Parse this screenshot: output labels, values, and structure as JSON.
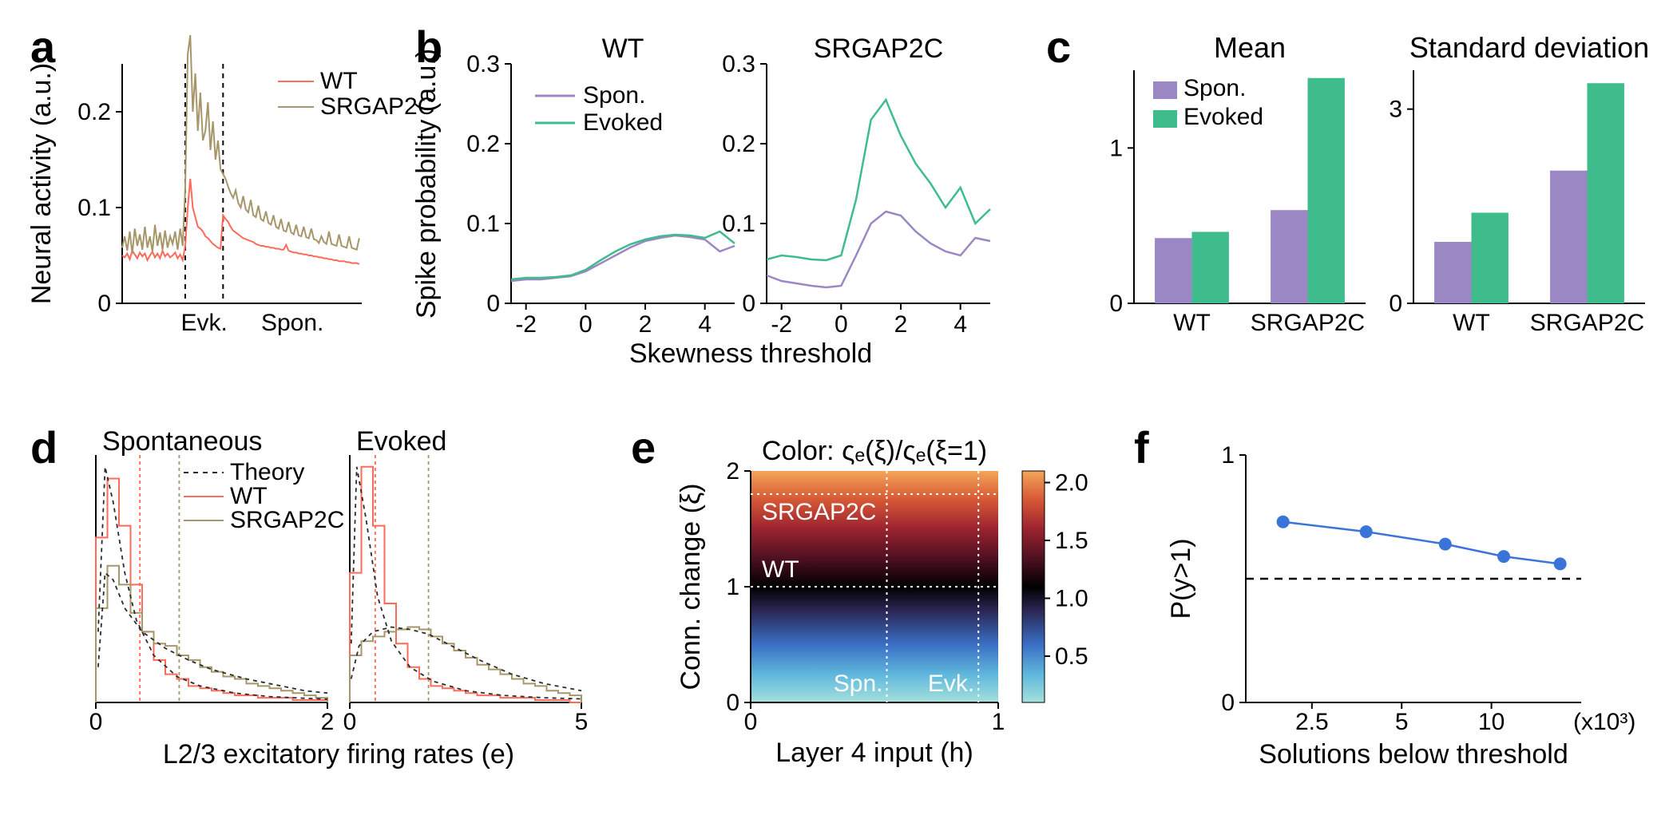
{
  "global": {
    "background_color": "#ffffff",
    "axis_color": "#000000",
    "font_family": "Arial",
    "panel_label_fontsize": 56,
    "axis_label_fontsize": 34,
    "tick_label_fontsize": 30,
    "legend_fontsize": 30,
    "title_fontsize": 36
  },
  "panels": {
    "a": {
      "type": "line",
      "letter": "a",
      "ylabel": "Neural activity (a.u.)",
      "ylim": [
        0,
        0.25
      ],
      "yticks": [
        0,
        0.1,
        0.2
      ],
      "xlim": [
        0,
        95
      ],
      "evoked_interval_x": [
        25,
        40
      ],
      "region_labels": {
        "evoked": "Evk.",
        "spontaneous": "Spon."
      },
      "evoked_divider_style": "dashed",
      "evoked_divider_color": "#000000",
      "legend": [
        {
          "label": "WT",
          "color": "#ff6a5a"
        },
        {
          "label": "SRGAP2C",
          "color": "#a6966a"
        }
      ],
      "series": {
        "WT": {
          "color": "#ff6a5a",
          "line_width": 2,
          "y": [
            0.05,
            0.048,
            0.052,
            0.046,
            0.055,
            0.051,
            0.047,
            0.053,
            0.049,
            0.052,
            0.045,
            0.05,
            0.054,
            0.048,
            0.052,
            0.047,
            0.055,
            0.049,
            0.052,
            0.048,
            0.05,
            0.053,
            0.047,
            0.051,
            0.045,
            0.06,
            0.1,
            0.13,
            0.1,
            0.09,
            0.08,
            0.078,
            0.075,
            0.07,
            0.068,
            0.065,
            0.062,
            0.06,
            0.058,
            0.057,
            0.092,
            0.088,
            0.085,
            0.08,
            0.076,
            0.074,
            0.072,
            0.07,
            0.068,
            0.067,
            0.066,
            0.065,
            0.064,
            0.062,
            0.061,
            0.06,
            0.06,
            0.059,
            0.059,
            0.058,
            0.058,
            0.057,
            0.057,
            0.056,
            0.056,
            0.061,
            0.055,
            0.054,
            0.053,
            0.053,
            0.052,
            0.052,
            0.051,
            0.051,
            0.05,
            0.05,
            0.049,
            0.049,
            0.048,
            0.048,
            0.047,
            0.047,
            0.046,
            0.046,
            0.045,
            0.045,
            0.044,
            0.044,
            0.044,
            0.043,
            0.043,
            0.042,
            0.042,
            0.042,
            0.041
          ]
        },
        "SRGAP2C": {
          "color": "#a6966a",
          "line_width": 2,
          "y": [
            0.058,
            0.07,
            0.055,
            0.075,
            0.052,
            0.078,
            0.06,
            0.072,
            0.056,
            0.08,
            0.058,
            0.07,
            0.054,
            0.082,
            0.06,
            0.074,
            0.056,
            0.076,
            0.058,
            0.07,
            0.062,
            0.075,
            0.056,
            0.078,
            0.06,
            0.12,
            0.26,
            0.28,
            0.2,
            0.24,
            0.18,
            0.22,
            0.17,
            0.18,
            0.21,
            0.16,
            0.19,
            0.15,
            0.17,
            0.14,
            0.135,
            0.13,
            0.122,
            0.115,
            0.11,
            0.118,
            0.105,
            0.1,
            0.112,
            0.098,
            0.095,
            0.108,
            0.092,
            0.09,
            0.102,
            0.088,
            0.086,
            0.096,
            0.084,
            0.082,
            0.092,
            0.08,
            0.078,
            0.088,
            0.076,
            0.075,
            0.085,
            0.074,
            0.072,
            0.082,
            0.071,
            0.07,
            0.08,
            0.069,
            0.068,
            0.078,
            0.067,
            0.066,
            0.063,
            0.07,
            0.064,
            0.062,
            0.075,
            0.062,
            0.061,
            0.06,
            0.072,
            0.06,
            0.059,
            0.058,
            0.07,
            0.058,
            0.057,
            0.056,
            0.068
          ]
        }
      }
    },
    "b": {
      "type": "line",
      "letter": "b",
      "ylabel": "Spike probability (a.u.)",
      "xlabel": "Skewness threshold",
      "ylim": [
        0,
        0.3
      ],
      "yticks": [
        0,
        0.1,
        0.2,
        0.3
      ],
      "xlim": [
        -2.5,
        5
      ],
      "xticks": [
        -2,
        0,
        2,
        4
      ],
      "legend": [
        {
          "label": "Spon.",
          "color": "#9b87c4"
        },
        {
          "label": "Evoked",
          "color": "#3fbc8b"
        }
      ],
      "subplots": {
        "WT": {
          "title": "WT",
          "series": {
            "Spon": {
              "color": "#9b87c4",
              "line_width": 2.5,
              "x": [
                -2.5,
                -2,
                -1.5,
                -1,
                -0.5,
                0,
                0.5,
                1,
                1.5,
                2,
                2.5,
                3,
                3.5,
                4,
                4.5,
                5
              ],
              "y": [
                0.028,
                0.03,
                0.03,
                0.032,
                0.034,
                0.04,
                0.05,
                0.06,
                0.07,
                0.078,
                0.082,
                0.085,
                0.083,
                0.08,
                0.065,
                0.072
              ]
            },
            "Evoked": {
              "color": "#3fbc8b",
              "line_width": 2.5,
              "x": [
                -2.5,
                -2,
                -1.5,
                -1,
                -0.5,
                0,
                0.5,
                1,
                1.5,
                2,
                2.5,
                3,
                3.5,
                4,
                4.5,
                5
              ],
              "y": [
                0.03,
                0.032,
                0.032,
                0.033,
                0.035,
                0.042,
                0.054,
                0.065,
                0.074,
                0.08,
                0.084,
                0.086,
                0.085,
                0.082,
                0.09,
                0.075
              ]
            }
          }
        },
        "SRGAP2C": {
          "title": "SRGAP2C",
          "series": {
            "Spon": {
              "color": "#9b87c4",
              "line_width": 2.5,
              "x": [
                -2.5,
                -2,
                -1.5,
                -1,
                -0.5,
                0,
                0.5,
                1,
                1.5,
                2,
                2.5,
                3,
                3.5,
                4,
                4.5,
                5
              ],
              "y": [
                0.035,
                0.028,
                0.025,
                0.022,
                0.02,
                0.022,
                0.06,
                0.1,
                0.115,
                0.11,
                0.09,
                0.075,
                0.065,
                0.06,
                0.082,
                0.078
              ]
            },
            "Evoked": {
              "color": "#3fbc8b",
              "line_width": 2.5,
              "x": [
                -2.5,
                -2,
                -1.5,
                -1,
                -0.5,
                0,
                0.5,
                1,
                1.5,
                2,
                2.5,
                3,
                3.5,
                4,
                4.5,
                5
              ],
              "y": [
                0.055,
                0.06,
                0.058,
                0.055,
                0.054,
                0.06,
                0.13,
                0.23,
                0.255,
                0.21,
                0.175,
                0.15,
                0.12,
                0.145,
                0.1,
                0.118
              ]
            }
          }
        }
      }
    },
    "c": {
      "type": "bar",
      "letter": "c",
      "bar_width": 0.32,
      "legend": [
        {
          "label": "Spon.",
          "color": "#9b87c4"
        },
        {
          "label": "Evoked",
          "color": "#3fbc8b"
        }
      ],
      "subplots": {
        "mean": {
          "title": "Mean",
          "ylim": [
            0,
            1.5
          ],
          "yticks": [
            0,
            1
          ],
          "categories": [
            "WT",
            "SRGAP2C"
          ],
          "values": {
            "Spon": [
              0.42,
              0.6
            ],
            "Evoked": [
              0.46,
              1.45
            ]
          }
        },
        "std": {
          "title": "Standard deviation",
          "ylim": [
            0,
            3.6
          ],
          "yticks": [
            0,
            3
          ],
          "categories": [
            "WT",
            "SRGAP2C"
          ],
          "values": {
            "Spon": [
              0.95,
              2.05
            ],
            "Evoked": [
              1.4,
              3.4
            ]
          }
        }
      }
    },
    "d": {
      "type": "histogram",
      "letter": "d",
      "xlabel": "L2/3 excitatory firing rates (e)",
      "theory_label": "Theory",
      "line_width": 2,
      "theory_dash": "5,5",
      "theory_color": "#2b2b2b",
      "mean_line_dash": "4,4",
      "legend": [
        {
          "label": "Theory",
          "color": "#2b2b2b",
          "style": "dashed"
        },
        {
          "label": "WT",
          "color": "#ff6a5a"
        },
        {
          "label": "SRGAP2C",
          "color": "#a6966a"
        }
      ],
      "subplots": {
        "spontaneous": {
          "title": "Spontaneous",
          "xlim": [
            0,
            2
          ],
          "xticks": [
            0,
            2
          ],
          "ylim": [
            0,
            1.05
          ],
          "means": {
            "WT": 0.38,
            "SRGAP2C": 0.72
          },
          "bin_edges": [
            0,
            0.1,
            0.2,
            0.3,
            0.4,
            0.5,
            0.6,
            0.7,
            0.8,
            0.9,
            1.0,
            1.1,
            1.2,
            1.3,
            1.4,
            1.5,
            1.6,
            1.7,
            1.8,
            1.9,
            2.0
          ],
          "hist": {
            "WT": [
              0.7,
              0.95,
              0.75,
              0.5,
              0.3,
              0.18,
              0.12,
              0.1,
              0.07,
              0.06,
              0.05,
              0.04,
              0.03,
              0.03,
              0.02,
              0.02,
              0.02,
              0.01,
              0.01,
              0.01
            ],
            "SRGAP2C": [
              0.4,
              0.58,
              0.5,
              0.38,
              0.3,
              0.25,
              0.24,
              0.2,
              0.18,
              0.15,
              0.13,
              0.11,
              0.1,
              0.08,
              0.07,
              0.06,
              0.05,
              0.04,
              0.03,
              0.02
            ]
          },
          "theory": {
            "WT_x": [
              0.02,
              0.08,
              0.15,
              0.25,
              0.35,
              0.5,
              0.7,
              0.9,
              1.2,
              1.5,
              1.8,
              2.0
            ],
            "WT_y": [
              0.3,
              1.0,
              0.85,
              0.55,
              0.35,
              0.2,
              0.11,
              0.07,
              0.04,
              0.025,
              0.018,
              0.014
            ],
            "SRGAP2C_x": [
              0.02,
              0.08,
              0.15,
              0.25,
              0.4,
              0.6,
              0.8,
              1.0,
              1.3,
              1.6,
              1.8,
              2.0
            ],
            "SRGAP2C_y": [
              0.15,
              0.55,
              0.52,
              0.4,
              0.3,
              0.23,
              0.18,
              0.14,
              0.1,
              0.07,
              0.05,
              0.04
            ]
          }
        },
        "evoked": {
          "title": "Evoked",
          "xlim": [
            0,
            5
          ],
          "xticks": [
            0,
            5
          ],
          "ylim": [
            0,
            1.05
          ],
          "means": {
            "WT": 0.55,
            "SRGAP2C": 1.7
          },
          "bin_edges": [
            0,
            0.25,
            0.5,
            0.75,
            1.0,
            1.25,
            1.5,
            1.75,
            2.0,
            2.25,
            2.5,
            2.75,
            3.0,
            3.25,
            3.5,
            3.75,
            4.0,
            4.25,
            4.5,
            4.75,
            5.0
          ],
          "hist": {
            "WT": [
              0.55,
              1.0,
              0.75,
              0.42,
              0.25,
              0.15,
              0.1,
              0.07,
              0.06,
              0.05,
              0.04,
              0.03,
              0.03,
              0.02,
              0.02,
              0.02,
              0.01,
              0.01,
              0.01,
              0.0
            ],
            "SRGAP2C": [
              0.2,
              0.26,
              0.28,
              0.3,
              0.31,
              0.32,
              0.31,
              0.28,
              0.25,
              0.22,
              0.19,
              0.16,
              0.14,
              0.12,
              0.1,
              0.08,
              0.07,
              0.05,
              0.04,
              0.03
            ]
          },
          "theory": {
            "WT_x": [
              0.03,
              0.15,
              0.35,
              0.6,
              0.9,
              1.3,
              1.8,
              2.5,
              3.3,
              4.2,
              5.0
            ],
            "WT_y": [
              0.25,
              1.0,
              0.78,
              0.45,
              0.26,
              0.15,
              0.09,
              0.05,
              0.03,
              0.02,
              0.015
            ],
            "SRGAP2C_x": [
              0.03,
              0.2,
              0.5,
              0.9,
              1.3,
              1.7,
              2.2,
              2.8,
              3.5,
              4.2,
              5.0
            ],
            "SRGAP2C_y": [
              0.1,
              0.24,
              0.3,
              0.32,
              0.31,
              0.29,
              0.24,
              0.18,
              0.12,
              0.08,
              0.05
            ]
          }
        }
      }
    },
    "e": {
      "type": "heatmap",
      "letter": "e",
      "title": "Color: ςₑ(ξ)/ςₑ(ξ=1)",
      "xlabel": "Layer 4 input (h)",
      "ylabel": "Conn. change (ξ)",
      "xlim": [
        0,
        1
      ],
      "xticks": [
        0,
        1
      ],
      "ylim": [
        0,
        2
      ],
      "yticks": [
        0,
        1,
        2
      ],
      "guide_lines": {
        "style": "dotted",
        "color": "#ffffff",
        "horizontal": [
          {
            "y": 1.0,
            "label": "WT"
          },
          {
            "y": 1.8,
            "label": "SRGAP2C"
          }
        ],
        "vertical": [
          {
            "x": 0.55,
            "label": "Spn."
          },
          {
            "x": 0.92,
            "label": "Evk."
          }
        ]
      },
      "colorbar": {
        "ticks": [
          0.5,
          1.0,
          1.5,
          2.0
        ],
        "stops": [
          {
            "t": 0.0,
            "c": "#a6e0dc"
          },
          {
            "t": 0.12,
            "c": "#5fb8dc"
          },
          {
            "t": 0.25,
            "c": "#3a6fc5"
          },
          {
            "t": 0.4,
            "c": "#2a2552"
          },
          {
            "t": 0.5,
            "c": "#000000"
          },
          {
            "t": 0.62,
            "c": "#4d1020"
          },
          {
            "t": 0.75,
            "c": "#9b2330"
          },
          {
            "t": 0.88,
            "c": "#d85a35"
          },
          {
            "t": 1.0,
            "c": "#f4a55a"
          }
        ],
        "value_range": [
          0.1,
          2.1
        ]
      }
    },
    "f": {
      "type": "line",
      "letter": "f",
      "ylabel": "P(y>1)",
      "xlabel": "Solutions below threshold",
      "ylim": [
        0,
        1
      ],
      "yticks": [
        0,
        1
      ],
      "xlim_log": [
        1500,
        20000
      ],
      "xticks": [
        2500,
        5000,
        10000
      ],
      "xticklabels": [
        "2.5",
        "5",
        "10"
      ],
      "x_unit_label": "(x10³)",
      "series": {
        "color": "#3a74d8",
        "marker": "circle",
        "marker_size": 8,
        "line_width": 2.5,
        "x": [
          2000,
          3800,
          7000,
          11000,
          17000
        ],
        "y": [
          0.73,
          0.69,
          0.64,
          0.59,
          0.56
        ]
      },
      "reference_line": {
        "y": 0.5,
        "style": "dashed",
        "color": "#000000"
      }
    }
  }
}
